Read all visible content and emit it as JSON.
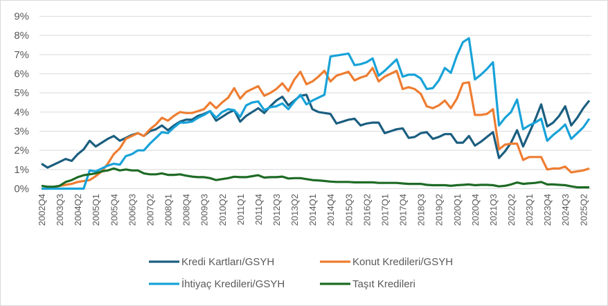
{
  "chart_data": {
    "type": "line",
    "title": "",
    "xlabel": "",
    "ylabel": "",
    "ylim": [
      0,
      9
    ],
    "yticks": [
      "0%",
      "1%",
      "2%",
      "3%",
      "4%",
      "5%",
      "6%",
      "7%",
      "8%",
      "9%"
    ],
    "grid": true,
    "legend_position": "bottom",
    "categories": [
      "2002Q4",
      "2003Q1",
      "2003Q2",
      "2003Q3",
      "2003Q4",
      "2004Q1",
      "2004Q2",
      "2004Q3",
      "2004Q4",
      "2005Q1",
      "2005Q2",
      "2005Q3",
      "2005Q4",
      "2006Q1",
      "2006Q2",
      "2006Q3",
      "2006Q4",
      "2007Q1",
      "2007Q2",
      "2007Q3",
      "2007Q4",
      "2008Q1",
      "2008Q2",
      "2008Q3",
      "2008Q4",
      "2009Q1",
      "2009Q2",
      "2009Q3",
      "2009Q4",
      "2010Q1",
      "2010Q2",
      "2010Q3",
      "2010Q4",
      "2011Q1",
      "2011Q2",
      "2011Q3",
      "2011Q4",
      "2012Q1",
      "2012Q2",
      "2012Q3",
      "2012Q4",
      "2013Q1",
      "2013Q2",
      "2013Q3",
      "2013Q4",
      "2014Q1",
      "2014Q2",
      "2014Q3",
      "2014Q4",
      "2015Q1",
      "2015Q2",
      "2015Q3",
      "2015Q4",
      "2016Q1",
      "2016Q2",
      "2016Q3",
      "2016Q4",
      "2017Q1",
      "2017Q2",
      "2017Q3",
      "2017Q4",
      "2018Q1",
      "2018Q2",
      "2018Q3",
      "2018Q4",
      "2019Q1",
      "2019Q2",
      "2019Q3",
      "2019Q4",
      "2020Q1",
      "2020Q2",
      "2020Q3",
      "2020Q4",
      "2021Q1",
      "2021Q2",
      "2021Q3",
      "2021Q4",
      "2022Q1",
      "2022Q2",
      "2022Q3",
      "2022Q4",
      "2023Q1",
      "2023Q2",
      "2023Q3",
      "2023Q4",
      "2024Q1",
      "2024Q2",
      "2024Q3",
      "2024Q4",
      "2025Q1",
      "2025Q2",
      "2025Q3"
    ],
    "x_tick_labels": [
      "2002Q4",
      "2003Q3",
      "2004Q2",
      "2005Q1",
      "2005Q4",
      "2006Q3",
      "2007Q2",
      "2008Q1",
      "2008Q4",
      "2009Q3",
      "2010Q2",
      "2011Q1",
      "2011Q4",
      "2012Q3",
      "2013Q2",
      "2014Q1",
      "2014Q4",
      "2015Q3",
      "2016Q2",
      "2017Q1",
      "2017Q4",
      "2018Q3",
      "2019Q2",
      "2020Q1",
      "2020Q4",
      "2021Q3",
      "2022Q2",
      "2023Q1",
      "2023Q4",
      "2024Q3",
      "2025Q2"
    ],
    "series": [
      {
        "name": "Kredi Kartları/GSYH",
        "color": "#1b5e80",
        "values": [
          1.3,
          1.1,
          1.25,
          1.4,
          1.55,
          1.45,
          1.8,
          2.05,
          2.5,
          2.2,
          2.4,
          2.6,
          2.75,
          2.5,
          2.65,
          2.8,
          2.9,
          2.75,
          3.0,
          3.1,
          3.3,
          3.05,
          3.3,
          3.5,
          3.6,
          3.6,
          3.8,
          3.9,
          4.05,
          3.55,
          3.75,
          3.95,
          4.1,
          3.5,
          3.8,
          4.0,
          4.2,
          3.95,
          4.3,
          4.6,
          4.8,
          4.35,
          4.6,
          4.85,
          4.9,
          4.15,
          4.0,
          3.95,
          3.9,
          3.4,
          3.5,
          3.6,
          3.65,
          3.3,
          3.4,
          3.45,
          3.45,
          2.9,
          3.0,
          3.1,
          3.15,
          2.65,
          2.7,
          2.9,
          2.95,
          2.6,
          2.7,
          2.85,
          2.85,
          2.4,
          2.4,
          2.75,
          2.25,
          2.45,
          2.7,
          2.95,
          1.6,
          1.95,
          2.4,
          3.05,
          2.2,
          2.9,
          3.6,
          4.4,
          3.25,
          3.45,
          3.8,
          4.3,
          3.3,
          3.7,
          4.2,
          4.6
        ]
      },
      {
        "name": "Konut Kredileri/GSYH",
        "color": "#ee7d31",
        "values": [
          0,
          0,
          0.05,
          0.15,
          0.2,
          0.25,
          0.35,
          0.4,
          0.45,
          0.65,
          0.9,
          1.3,
          1.8,
          2.1,
          2.6,
          2.75,
          2.9,
          2.75,
          3.1,
          3.35,
          3.7,
          3.55,
          3.8,
          4.0,
          3.95,
          3.95,
          4.05,
          4.15,
          4.5,
          4.2,
          4.5,
          4.75,
          5.25,
          4.7,
          5.05,
          5.2,
          5.35,
          4.85,
          5.0,
          5.2,
          5.5,
          5.1,
          5.7,
          6.1,
          5.45,
          5.6,
          5.85,
          6.15,
          5.6,
          5.9,
          6.0,
          6.1,
          5.65,
          5.8,
          5.9,
          6.3,
          5.6,
          5.85,
          6.0,
          6.15,
          5.2,
          5.3,
          5.2,
          4.95,
          4.3,
          4.2,
          4.35,
          4.6,
          4.2,
          4.7,
          5.5,
          5.55,
          3.85,
          3.85,
          3.9,
          4.15,
          2.05,
          2.3,
          2.35,
          2.35,
          1.5,
          1.65,
          1.65,
          1.65,
          1.0,
          1.05,
          1.05,
          1.15,
          0.85,
          0.9,
          0.95,
          1.05
        ]
      },
      {
        "name": "İhtiyaç Kredileri/GSYH",
        "color": "#17a2d8",
        "values": [
          0,
          0,
          0,
          0,
          0,
          0,
          0,
          0,
          0.95,
          0.9,
          1.05,
          1.2,
          1.3,
          1.25,
          1.7,
          1.8,
          2.0,
          2.0,
          2.35,
          2.65,
          2.95,
          2.9,
          3.2,
          3.45,
          3.45,
          3.5,
          3.7,
          3.85,
          4.05,
          3.7,
          4.0,
          4.15,
          4.1,
          3.75,
          4.35,
          4.5,
          4.55,
          4.1,
          4.25,
          4.3,
          4.45,
          4.15,
          4.55,
          4.9,
          4.4,
          4.6,
          4.75,
          4.9,
          6.9,
          6.95,
          7.0,
          7.05,
          6.45,
          6.5,
          6.6,
          6.8,
          5.9,
          6.15,
          6.45,
          6.75,
          5.85,
          5.95,
          5.95,
          5.75,
          5.2,
          5.25,
          5.65,
          6.3,
          6.05,
          6.95,
          7.65,
          7.85,
          5.7,
          5.95,
          6.25,
          6.6,
          3.3,
          3.7,
          4.0,
          4.65,
          3.1,
          3.3,
          3.45,
          3.65,
          2.5,
          2.8,
          3.05,
          3.35,
          2.6,
          2.9,
          3.2,
          3.65
        ]
      },
      {
        "name": "Taşıt Kredileri",
        "color": "#1e6b25",
        "values": [
          0.15,
          0.1,
          0.1,
          0.15,
          0.35,
          0.45,
          0.6,
          0.7,
          0.75,
          0.8,
          0.9,
          0.95,
          1.05,
          0.95,
          1.0,
          0.95,
          0.95,
          0.8,
          0.75,
          0.75,
          0.8,
          0.72,
          0.72,
          0.75,
          0.68,
          0.63,
          0.6,
          0.6,
          0.55,
          0.45,
          0.5,
          0.55,
          0.62,
          0.6,
          0.6,
          0.65,
          0.7,
          0.58,
          0.6,
          0.6,
          0.63,
          0.53,
          0.55,
          0.55,
          0.5,
          0.45,
          0.43,
          0.4,
          0.37,
          0.35,
          0.35,
          0.35,
          0.33,
          0.33,
          0.33,
          0.33,
          0.3,
          0.3,
          0.3,
          0.3,
          0.27,
          0.25,
          0.25,
          0.25,
          0.2,
          0.18,
          0.18,
          0.18,
          0.15,
          0.18,
          0.2,
          0.22,
          0.18,
          0.2,
          0.2,
          0.18,
          0.12,
          0.15,
          0.22,
          0.32,
          0.25,
          0.28,
          0.3,
          0.35,
          0.22,
          0.22,
          0.2,
          0.18,
          0.12,
          0.07,
          0.07,
          0.07
        ]
      }
    ]
  }
}
